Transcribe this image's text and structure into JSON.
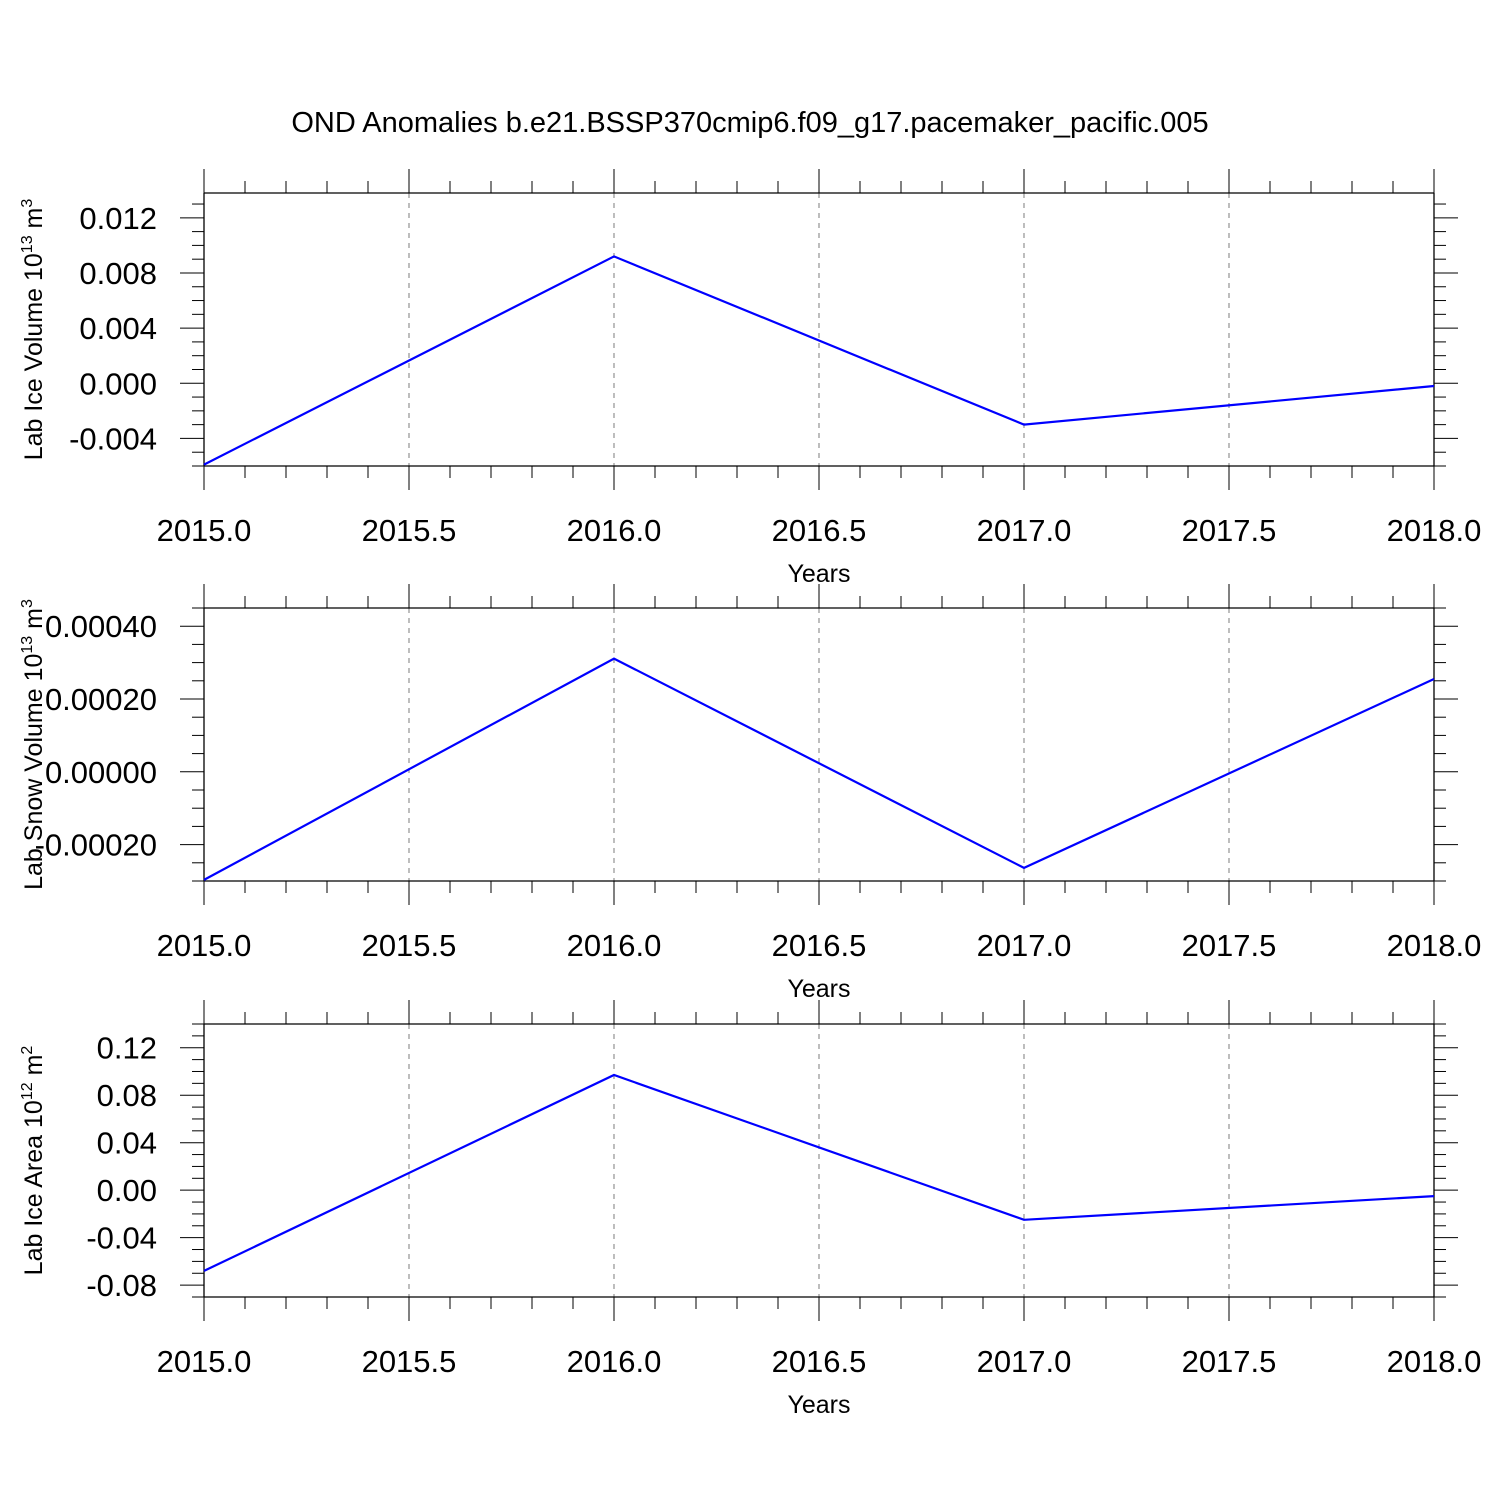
{
  "chart_data": [
    {
      "type": "line",
      "title": "OND Anomalies b.e21.BSSP370cmip6.f09_g17.pacemaker_pacific.005",
      "xlabel": "Years",
      "ylabel": "Lab Ice Volume 10",
      "ylabel_exp": "13",
      "ylabel_unit": " m",
      "ylabel_unit_exp": "3",
      "xlim": [
        2015.0,
        2018.0
      ],
      "ylim": [
        -0.006,
        0.0138
      ],
      "x_ticks": [
        "2015.0",
        "2015.5",
        "2016.0",
        "2016.5",
        "2017.0",
        "2017.5",
        "2018.0"
      ],
      "y_ticks": [
        -0.004,
        0.0,
        0.004,
        0.008,
        0.012
      ],
      "y_tick_labels": [
        "-0.004",
        "0.000",
        "0.004",
        "0.008",
        "0.012"
      ],
      "grid": "vertical dashed",
      "color": "#0000ff",
      "series": [
        {
          "x": [
            2015.0,
            2016.0,
            2017.0,
            2018.0
          ],
          "values": [
            -0.0059,
            0.0092,
            -0.003,
            -0.0002
          ]
        }
      ]
    },
    {
      "type": "line",
      "title": "",
      "xlabel": "Years",
      "ylabel": "Lab Snow Volume 10",
      "ylabel_exp": "13",
      "ylabel_unit": " m",
      "ylabel_unit_exp": "3",
      "xlim": [
        2015.0,
        2018.0
      ],
      "ylim": [
        -0.0003,
        0.00045
      ],
      "x_ticks": [
        "2015.0",
        "2015.5",
        "2016.0",
        "2016.5",
        "2017.0",
        "2017.5",
        "2018.0"
      ],
      "y_ticks": [
        -0.0002,
        0.0,
        0.0002,
        0.0004
      ],
      "y_tick_labels": [
        "-0.00020",
        "0.00000",
        "0.00020",
        "0.00040"
      ],
      "grid": "vertical dashed",
      "color": "#0000ff",
      "series": [
        {
          "x": [
            2015.0,
            2016.0,
            2017.0,
            2018.0
          ],
          "values": [
            -0.000297,
            0.000311,
            -0.000264,
            0.000255
          ]
        }
      ]
    },
    {
      "type": "line",
      "title": "",
      "xlabel": "Years",
      "ylabel": "Lab Ice Area 10",
      "ylabel_exp": "12",
      "ylabel_unit": " m",
      "ylabel_unit_exp": "2",
      "xlim": [
        2015.0,
        2018.0
      ],
      "ylim": [
        -0.09,
        0.14
      ],
      "x_ticks": [
        "2015.0",
        "2015.5",
        "2016.0",
        "2016.5",
        "2017.0",
        "2017.5",
        "2018.0"
      ],
      "y_ticks": [
        -0.08,
        -0.04,
        0.0,
        0.04,
        0.08,
        0.12
      ],
      "y_tick_labels": [
        "-0.08",
        "-0.04",
        "0.00",
        "0.04",
        "0.08",
        "0.12"
      ],
      "grid": "vertical dashed",
      "color": "#0000ff",
      "series": [
        {
          "x": [
            2015.0,
            2016.0,
            2017.0,
            2018.0
          ],
          "values": [
            -0.068,
            0.097,
            -0.025,
            -0.005
          ]
        }
      ]
    }
  ]
}
